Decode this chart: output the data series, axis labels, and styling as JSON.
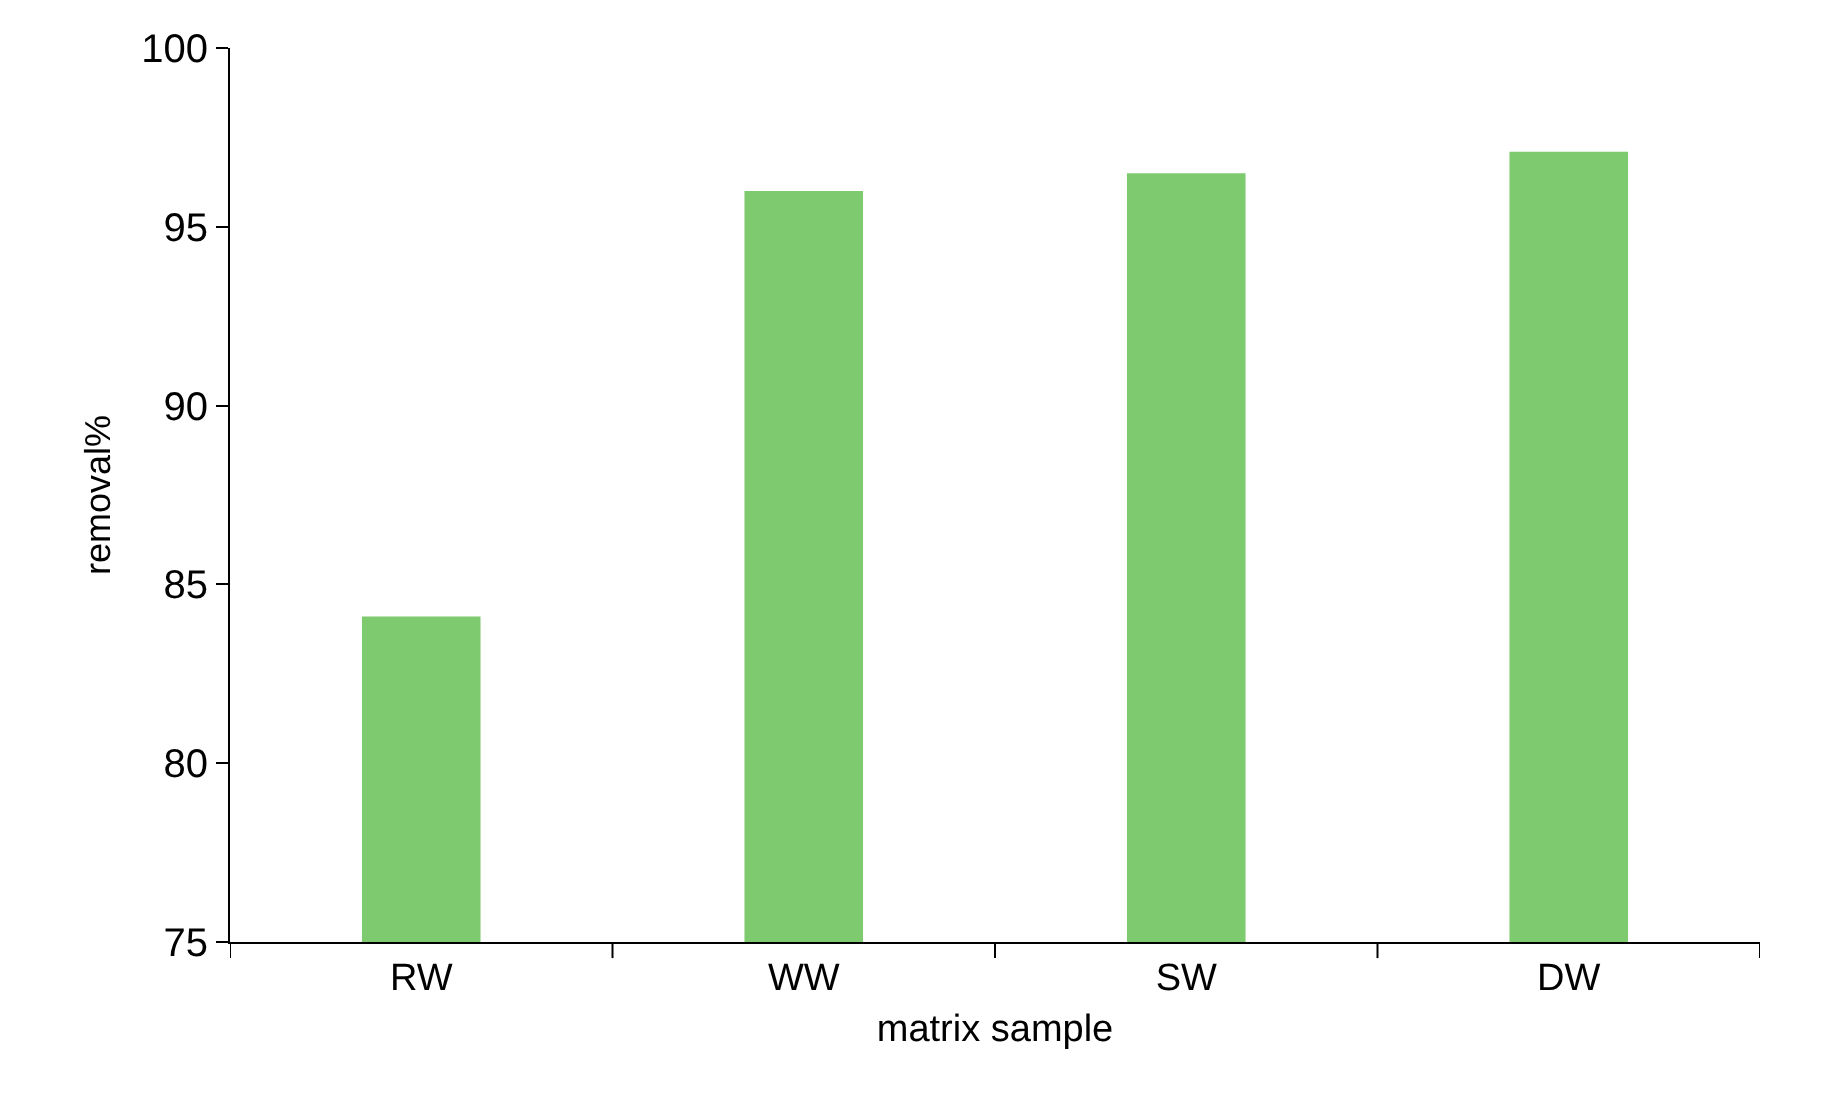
{
  "chart_data": {
    "type": "bar",
    "xlabel": "matrix sample",
    "ylabel": "removal%",
    "categories": [
      "RW",
      "WW",
      "SW",
      "DW"
    ],
    "values": [
      84.1,
      96.0,
      96.5,
      97.1
    ],
    "color": "#7dcb6e",
    "ylim": [
      75,
      100
    ],
    "yticks": [
      75,
      80,
      85,
      90,
      95,
      100
    ]
  }
}
